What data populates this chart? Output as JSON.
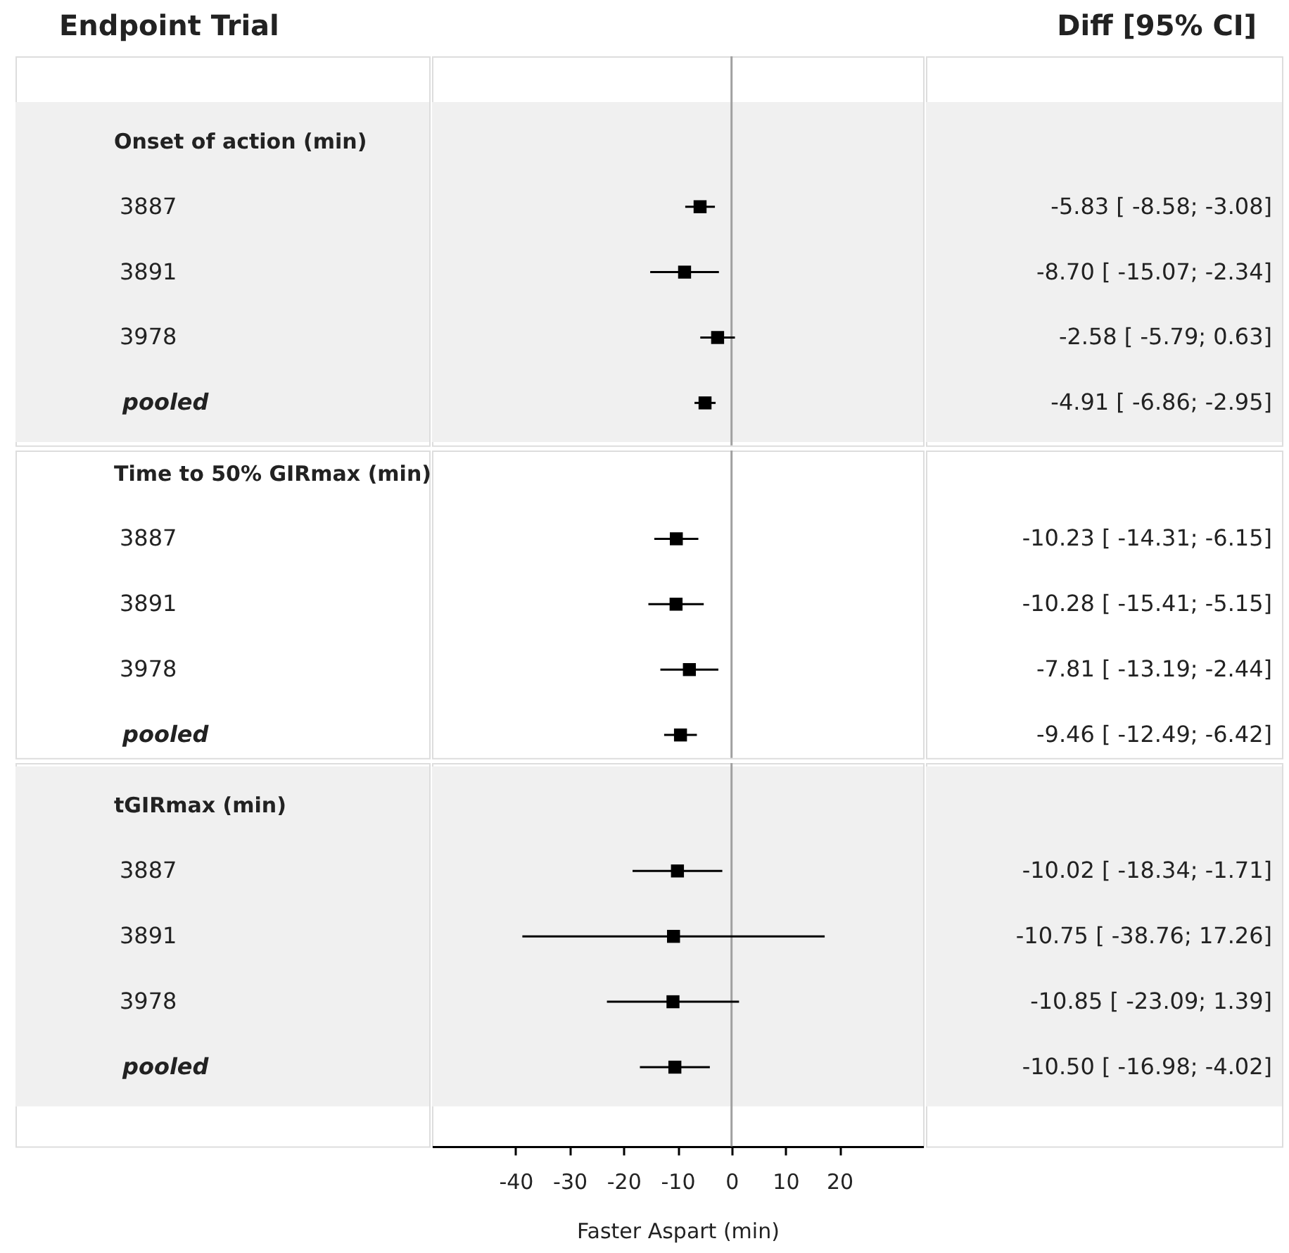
{
  "chart_data": [
    {
      "type": "scatter",
      "orientation": "horizontal",
      "ylabel": "Endpoint Trial",
      "annotations": [
        "Diff [95% CI]"
      ],
      "categories": [
        "Onset of action (min)",
        "3887",
        "3891",
        "3978",
        "pooled"
      ],
      "values": [
        null,
        -5.83,
        -8.7,
        -2.58,
        -4.91
      ],
      "errors": [
        null,
        [
          -8.58,
          -3.08
        ],
        [
          -15.07,
          -2.34
        ],
        [
          -5.79,
          0.63
        ],
        [
          -6.86,
          -2.95
        ]
      ],
      "value_labels": [
        null,
        "-5.83 [ -8.58; -3.08]",
        "-8.70 [ -15.07; -2.34]",
        "-2.58 [ -5.79; 0.63]",
        "-4.91 [ -6.86; -2.95]"
      ],
      "color": "#000000",
      "marker": "square",
      "xlim": [
        -55.5,
        35.5
      ],
      "tick_labels": "y",
      "ref_lines": [
        {
          "axis": "x",
          "value": 0,
          "color": "#a0a0a0"
        }
      ],
      "bands": [
        {
          "axis": "y",
          "from": "Onset of action (min)",
          "to": "pooled",
          "color": "#f0f0f0"
        }
      ]
    },
    {
      "type": "scatter",
      "orientation": "horizontal",
      "categories": [
        "Time to 50% GIRmax (min)",
        "3887",
        "3891",
        "3978",
        "pooled"
      ],
      "values": [
        null,
        -10.23,
        -10.28,
        -7.81,
        -9.46
      ],
      "errors": [
        null,
        [
          -14.31,
          -6.15
        ],
        [
          -15.41,
          -5.15
        ],
        [
          -13.19,
          -2.44
        ],
        [
          -12.49,
          -6.42
        ]
      ],
      "value_labels": [
        null,
        "-10.23 [ -14.31; -6.15]",
        "-10.28 [ -15.41; -5.15]",
        "-7.81 [ -13.19; -2.44]",
        "-9.46 [ -12.49; -6.42]"
      ],
      "color": "#000000",
      "marker": "square",
      "xlim": [
        -55.5,
        35.5
      ],
      "tick_labels": "y",
      "ref_lines": [
        {
          "axis": "x",
          "value": 0,
          "color": "#a0a0a0"
        }
      ]
    },
    {
      "type": "scatter",
      "orientation": "horizontal",
      "xlabel": "Faster Aspart (min)",
      "categories": [
        "tGIRmax (min)",
        "3887",
        "3891",
        "3978",
        "pooled"
      ],
      "values": [
        null,
        -10.02,
        -10.75,
        -10.85,
        -10.5
      ],
      "errors": [
        null,
        [
          -18.34,
          -1.71
        ],
        [
          -38.76,
          17.26
        ],
        [
          -23.09,
          1.39
        ],
        [
          -16.98,
          -4.02
        ]
      ],
      "value_labels": [
        null,
        "-10.02 [ -18.34; -1.71]",
        "-10.75 [ -38.76; 17.26]",
        "-10.85 [ -23.09; 1.39]",
        "-10.50 [ -16.98; -4.02]"
      ],
      "color": "#000000",
      "marker": "square",
      "xlim": [
        -55.5,
        35.5
      ],
      "xticks": [
        -40,
        -30,
        -20,
        -10,
        0,
        10,
        20
      ],
      "ref_lines": [
        {
          "axis": "x",
          "value": 0,
          "color": "#a0a0a0"
        }
      ],
      "bands": [
        {
          "axis": "y",
          "from": "tGIRmax (min)",
          "to": "pooled",
          "color": "#f0f0f0"
        }
      ]
    }
  ]
}
